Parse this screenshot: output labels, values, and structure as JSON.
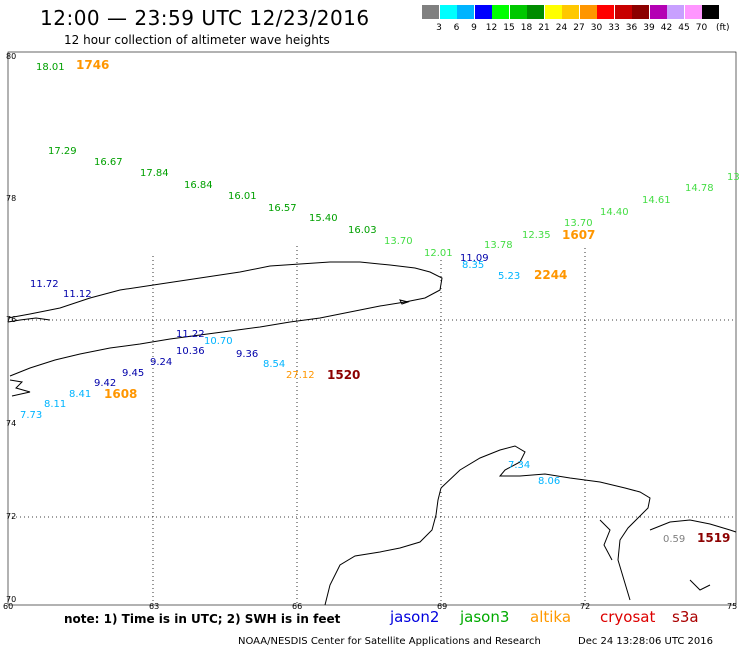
{
  "title": "12:00 — 23:59 UTC 12/23/2016",
  "subtitle": "12 hour collection of altimeter wave heights",
  "scale": {
    "unit": "(ft)",
    "entries": [
      {
        "label": "3",
        "color": "#808080"
      },
      {
        "label": "6",
        "color": "#00ffff"
      },
      {
        "label": "9",
        "color": "#00b4ff"
      },
      {
        "label": "12",
        "color": "#0000ff"
      },
      {
        "label": "15",
        "color": "#00ff00"
      },
      {
        "label": "18",
        "color": "#00c800"
      },
      {
        "label": "21",
        "color": "#008c00"
      },
      {
        "label": "24",
        "color": "#ffff00"
      },
      {
        "label": "27",
        "color": "#ffc800"
      },
      {
        "label": "30",
        "color": "#ff9600"
      },
      {
        "label": "33",
        "color": "#ff0000"
      },
      {
        "label": "36",
        "color": "#c80000"
      },
      {
        "label": "39",
        "color": "#8c0000"
      },
      {
        "label": "42",
        "color": "#b400b4"
      },
      {
        "label": "45",
        "color": "#c8a0ff"
      },
      {
        "label": "70",
        "color": "#ff96ff"
      },
      {
        "label": "",
        "color": "#000000"
      }
    ]
  },
  "axes": {
    "lat_labels": [
      "80",
      "78",
      "76",
      "74",
      "72",
      "70"
    ],
    "lon_labels": [
      "60",
      "63",
      "66",
      "69",
      "72",
      "75"
    ]
  },
  "tracks": [
    {
      "mission": "jason3",
      "color": "#00b000",
      "time": "1746",
      "time_color": "#ff9600",
      "observations": [
        "18.01",
        "17.29",
        "16.67",
        "17.84",
        "16.84",
        "16.01",
        "16.57",
        "15.40",
        "16.03"
      ]
    },
    {
      "mission": "altika",
      "color": "#44dd44",
      "time": "1607",
      "time_color": "#ff9600",
      "observations": [
        "13.70",
        "12.01",
        "13.78",
        "12.35",
        "13.70",
        "14.40",
        "14.61",
        "14.78",
        "13"
      ]
    },
    {
      "mission": "jason2",
      "color": "#0000aa",
      "time": "1608",
      "time_color": "#ff9600",
      "observations": [
        "11.72",
        "11.12",
        "11.22",
        "10.36",
        "9.24",
        "9.36",
        "9.45",
        "9.42",
        "8.41",
        "8.11",
        "7.73"
      ]
    },
    {
      "mission": "cryosat",
      "color": "#00b4ff",
      "time": "1520",
      "time_color": "#8c0000",
      "observations": [
        "10.70",
        "8.54",
        "27.12"
      ]
    },
    {
      "mission": "jason2-b",
      "color": "#0000aa",
      "time": "2244",
      "time_color": "#ff9600",
      "observations": [
        "11.09",
        "8.35",
        "5.23"
      ]
    },
    {
      "mission": "s3a",
      "color": "#00b4ff",
      "time": "1519",
      "time_color": "#8c0000",
      "observations": [
        "7.34",
        "8.06",
        "0.59"
      ]
    }
  ],
  "note": "note: 1) Time is in UTC; 2) SWH is in feet",
  "missions": [
    {
      "name": "jason2",
      "color": "#0000dd"
    },
    {
      "name": "jason3",
      "color": "#00aa00"
    },
    {
      "name": "altika",
      "color": "#ff9900"
    },
    {
      "name": "cryosat",
      "color": "#dd0000"
    },
    {
      "name": "s3a",
      "color": "#aa0000"
    }
  ],
  "credit": "NOAA/NESDIS Center for Satellite Applications and Research",
  "timestamp": "Dec 24 13:28:06 UTC 2016"
}
